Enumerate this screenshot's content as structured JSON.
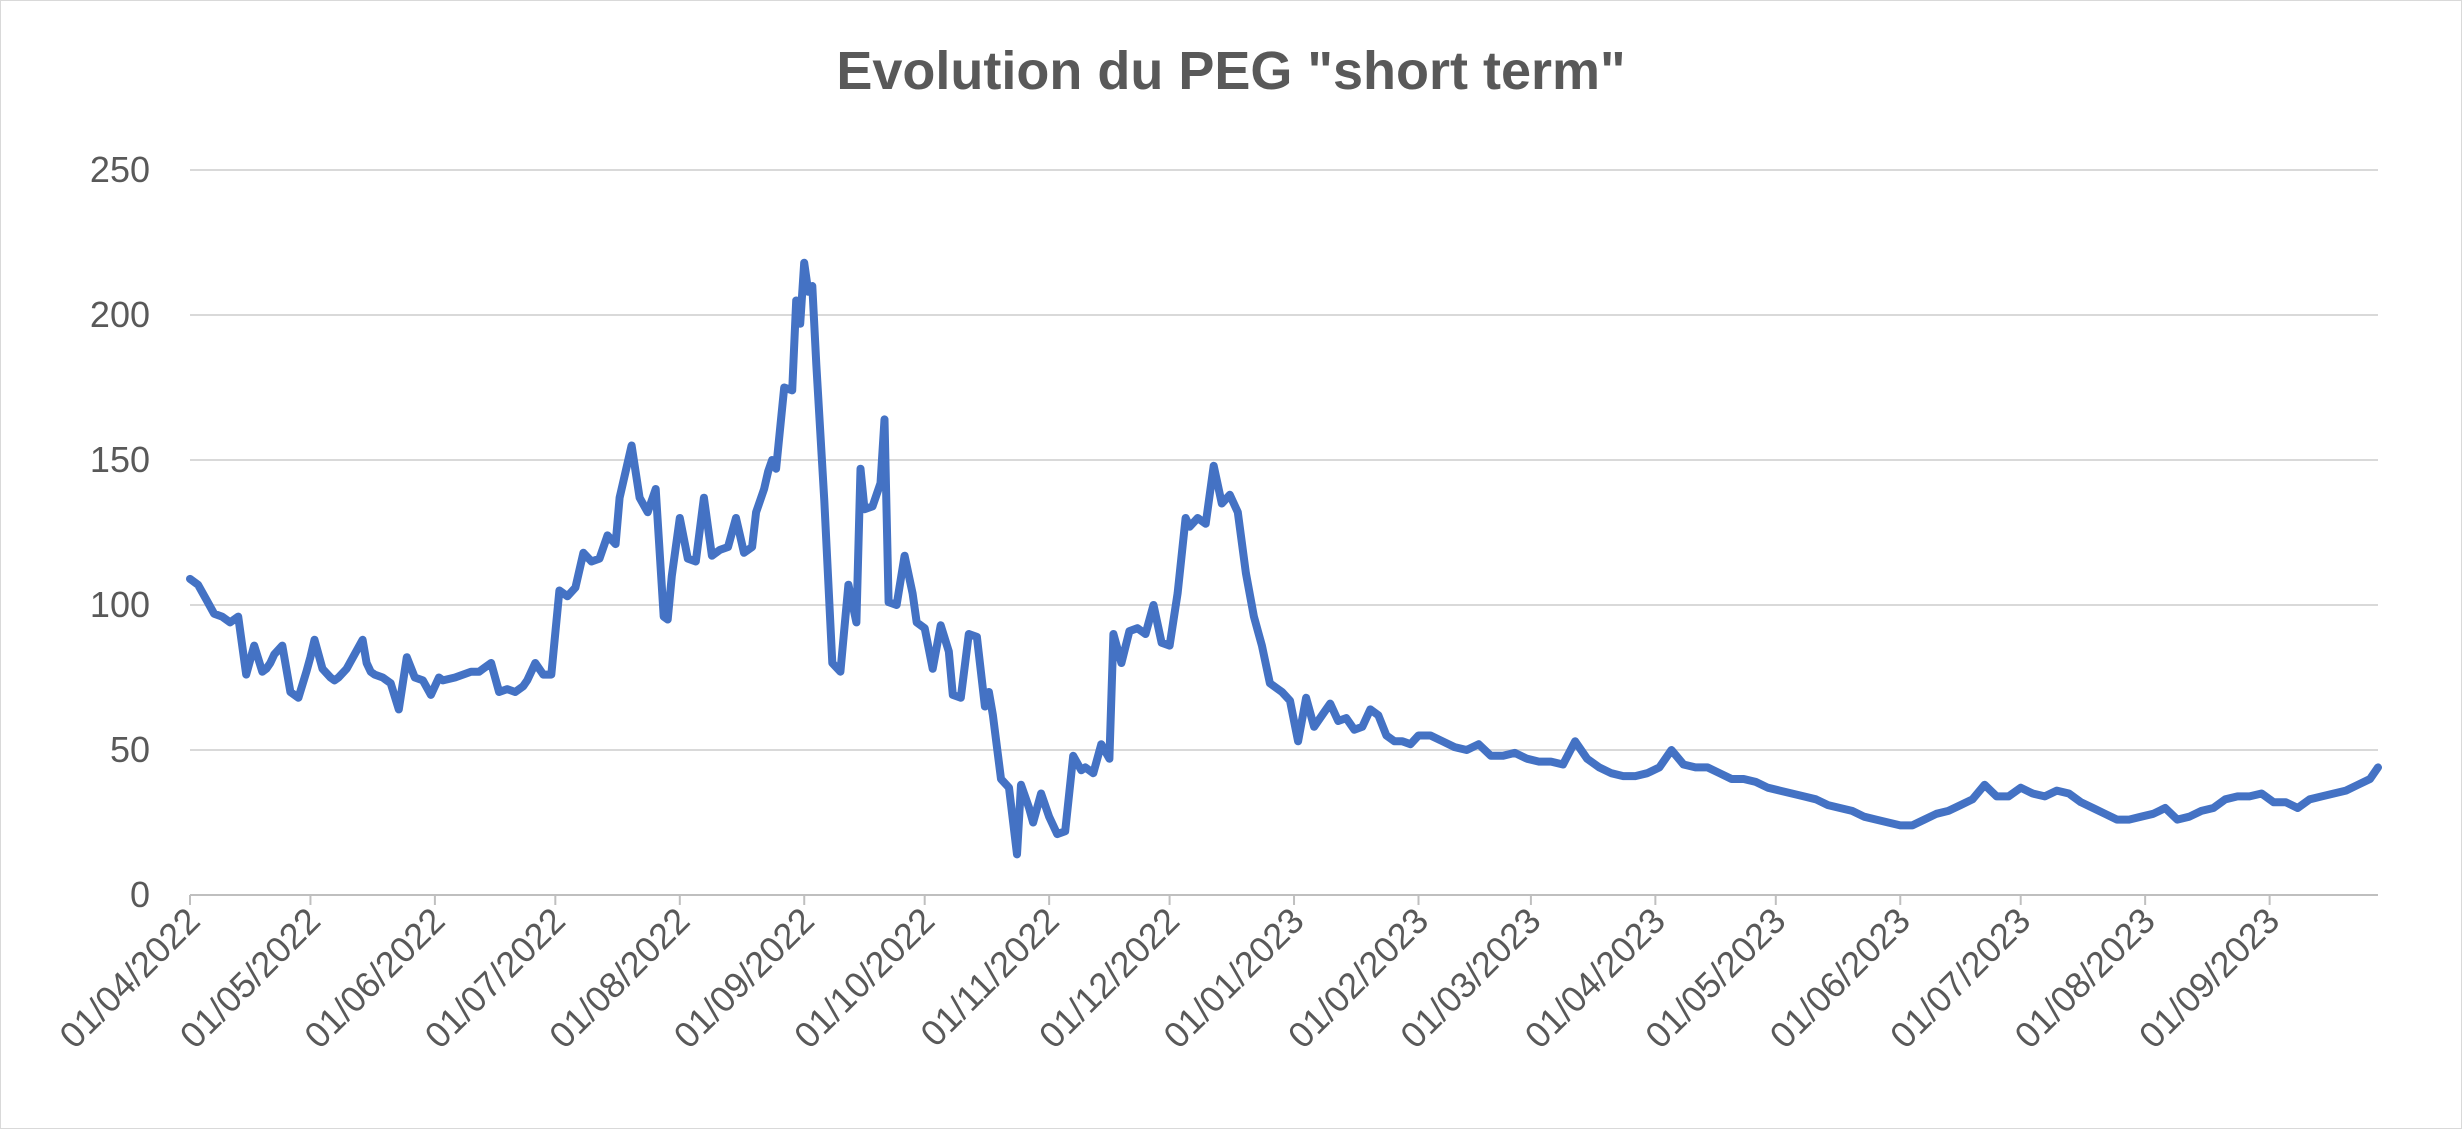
{
  "chart_data": {
    "type": "line",
    "title": "Evolution du PEG \"short term\"",
    "xlabel": "",
    "ylabel": "",
    "ylim": [
      0,
      250
    ],
    "yticks": [
      "0",
      "50",
      "100",
      "150",
      "200",
      "250"
    ],
    "xticks": [
      "01/04/2022",
      "01/05/2022",
      "01/06/2022",
      "01/07/2022",
      "01/08/2022",
      "01/09/2022",
      "01/10/2022",
      "01/11/2022",
      "01/12/2022",
      "01/01/2023",
      "01/02/2023",
      "01/03/2023",
      "01/04/2023",
      "01/05/2023",
      "01/06/2023",
      "01/07/2023",
      "01/08/2023",
      "01/09/2023"
    ],
    "xrange": [
      "2022-04-01",
      "2023-09-28"
    ],
    "grid": "horizontal",
    "legend": "none",
    "line_color": "#4472C4",
    "series": [
      {
        "x": [
          "2022-04-01",
          "2022-04-03",
          "2022-04-05",
          "2022-04-07",
          "2022-04-09",
          "2022-04-11",
          "2022-04-13",
          "2022-04-15",
          "2022-04-17",
          "2022-04-19",
          "2022-04-20",
          "2022-04-21",
          "2022-04-22",
          "2022-04-24",
          "2022-04-26",
          "2022-04-28",
          "2022-04-30",
          "2022-05-01",
          "2022-05-02",
          "2022-05-04",
          "2022-05-06",
          "2022-05-07",
          "2022-05-08",
          "2022-05-10",
          "2022-05-12",
          "2022-05-14",
          "2022-05-15",
          "2022-05-16",
          "2022-05-17",
          "2022-05-19",
          "2022-05-21",
          "2022-05-23",
          "2022-05-25",
          "2022-05-27",
          "2022-05-29",
          "2022-05-31",
          "2022-06-02",
          "2022-06-03",
          "2022-06-06",
          "2022-06-08",
          "2022-06-10",
          "2022-06-12",
          "2022-06-13",
          "2022-06-15",
          "2022-06-17",
          "2022-06-19",
          "2022-06-21",
          "2022-06-23",
          "2022-06-24",
          "2022-06-26",
          "2022-06-28",
          "2022-06-30",
          "2022-07-02",
          "2022-07-04",
          "2022-07-06",
          "2022-07-07",
          "2022-07-08",
          "2022-07-10",
          "2022-07-12",
          "2022-07-14",
          "2022-07-16",
          "2022-07-17",
          "2022-07-20",
          "2022-07-22",
          "2022-07-24",
          "2022-07-26",
          "2022-07-28",
          "2022-07-29",
          "2022-07-30",
          "2022-08-01",
          "2022-08-03",
          "2022-08-05",
          "2022-08-07",
          "2022-08-09",
          "2022-08-11",
          "2022-08-13",
          "2022-08-15",
          "2022-08-17",
          "2022-08-19",
          "2022-08-20",
          "2022-08-22",
          "2022-08-23",
          "2022-08-24",
          "2022-08-25",
          "2022-08-27",
          "2022-08-29",
          "2022-08-30",
          "2022-08-31",
          "2022-09-01",
          "2022-09-02",
          "2022-09-03",
          "2022-09-04",
          "2022-09-06",
          "2022-09-08",
          "2022-09-10",
          "2022-09-12",
          "2022-09-14",
          "2022-09-15",
          "2022-09-16",
          "2022-09-18",
          "2022-09-20",
          "2022-09-21",
          "2022-09-22",
          "2022-09-24",
          "2022-09-26",
          "2022-09-28",
          "2022-09-29",
          "2022-10-01",
          "2022-10-03",
          "2022-10-05",
          "2022-10-07",
          "2022-10-08",
          "2022-10-10",
          "2022-10-12",
          "2022-10-14",
          "2022-10-16",
          "2022-10-17",
          "2022-10-18",
          "2022-10-20",
          "2022-10-22",
          "2022-10-24",
          "2022-10-25",
          "2022-10-27",
          "2022-10-28",
          "2022-10-30",
          "2022-11-01",
          "2022-11-03",
          "2022-11-05",
          "2022-11-07",
          "2022-11-09",
          "2022-11-10",
          "2022-11-12",
          "2022-11-14",
          "2022-11-16",
          "2022-11-17",
          "2022-11-19",
          "2022-11-21",
          "2022-11-23",
          "2022-11-25",
          "2022-11-27",
          "2022-11-29",
          "2022-12-01",
          "2022-12-03",
          "2022-12-05",
          "2022-12-06",
          "2022-12-08",
          "2022-12-10",
          "2022-12-12",
          "2022-12-14",
          "2022-12-16",
          "2022-12-18",
          "2022-12-20",
          "2022-12-22",
          "2022-12-24",
          "2022-12-26",
          "2022-12-28",
          "2022-12-29",
          "2022-12-31",
          "2023-01-02",
          "2023-01-04",
          "2023-01-06",
          "2023-01-08",
          "2023-01-10",
          "2023-01-12",
          "2023-01-14",
          "2023-01-16",
          "2023-01-18",
          "2023-01-20",
          "2023-01-22",
          "2023-01-24",
          "2023-01-26",
          "2023-01-28",
          "2023-01-30",
          "2023-02-01",
          "2023-02-04",
          "2023-02-07",
          "2023-02-10",
          "2023-02-13",
          "2023-02-16",
          "2023-02-19",
          "2023-02-22",
          "2023-02-25",
          "2023-02-28",
          "2023-03-03",
          "2023-03-06",
          "2023-03-09",
          "2023-03-12",
          "2023-03-15",
          "2023-03-18",
          "2023-03-21",
          "2023-03-24",
          "2023-03-27",
          "2023-03-30",
          "2023-04-02",
          "2023-04-05",
          "2023-04-08",
          "2023-04-11",
          "2023-04-14",
          "2023-04-17",
          "2023-04-20",
          "2023-04-23",
          "2023-04-26",
          "2023-04-29",
          "2023-05-02",
          "2023-05-05",
          "2023-05-08",
          "2023-05-11",
          "2023-05-14",
          "2023-05-17",
          "2023-05-20",
          "2023-05-23",
          "2023-05-26",
          "2023-05-29",
          "2023-06-01",
          "2023-06-04",
          "2023-06-07",
          "2023-06-10",
          "2023-06-13",
          "2023-06-16",
          "2023-06-19",
          "2023-06-22",
          "2023-06-25",
          "2023-06-28",
          "2023-07-01",
          "2023-07-04",
          "2023-07-07",
          "2023-07-10",
          "2023-07-13",
          "2023-07-16",
          "2023-07-19",
          "2023-07-22",
          "2023-07-25",
          "2023-07-28",
          "2023-07-31",
          "2023-08-03",
          "2023-08-06",
          "2023-08-09",
          "2023-08-12",
          "2023-08-15",
          "2023-08-18",
          "2023-08-21",
          "2023-08-24",
          "2023-08-27",
          "2023-08-30",
          "2023-09-02",
          "2023-09-05",
          "2023-09-08",
          "2023-09-11",
          "2023-09-14",
          "2023-09-17",
          "2023-09-20",
          "2023-09-23",
          "2023-09-26",
          "2023-09-28"
        ],
        "values": [
          109,
          107,
          102,
          97,
          96,
          94,
          96,
          76,
          86,
          77,
          78,
          80,
          83,
          86,
          70,
          68,
          77,
          82,
          88,
          78,
          75,
          74,
          75,
          78,
          83,
          88,
          80,
          77,
          76,
          75,
          73,
          64,
          82,
          75,
          74,
          69,
          75,
          74,
          75,
          76,
          77,
          77,
          78,
          80,
          70,
          71,
          70,
          72,
          74,
          80,
          76,
          76,
          105,
          103,
          106,
          112,
          118,
          115,
          116,
          124,
          121,
          137,
          155,
          137,
          132,
          140,
          96,
          95,
          110,
          130,
          116,
          115,
          137,
          117,
          119,
          120,
          130,
          118,
          120,
          132,
          140,
          146,
          150,
          147,
          175,
          174,
          205,
          197,
          218,
          208,
          210,
          183,
          136,
          80,
          77,
          107,
          94,
          147,
          133,
          134,
          142,
          164,
          101,
          100,
          117,
          104,
          94,
          92,
          78,
          93,
          84,
          69,
          68,
          90,
          89,
          65,
          70,
          62,
          40,
          37,
          14,
          38,
          30,
          25,
          35,
          27,
          21,
          22,
          48,
          43,
          44,
          42,
          52,
          47,
          90,
          80,
          91,
          92,
          90,
          100,
          87,
          86,
          104,
          130,
          127,
          130,
          128,
          148,
          135,
          138,
          132,
          111,
          96,
          86,
          73,
          71,
          70,
          67,
          53,
          68,
          58,
          62,
          66,
          60,
          61,
          57,
          58,
          64,
          62,
          55,
          53,
          53,
          52,
          55,
          55,
          53,
          51,
          50,
          52,
          48,
          48,
          49,
          47,
          46,
          46,
          45,
          53,
          47,
          44,
          42,
          41,
          41,
          42,
          44,
          50,
          45,
          44,
          44,
          42,
          40,
          40,
          39,
          37,
          36,
          35,
          34,
          33,
          31,
          30,
          29,
          27,
          26,
          25,
          24,
          24,
          26,
          28,
          29,
          31,
          33,
          38,
          34,
          34,
          37,
          35,
          34,
          36,
          35,
          32,
          30,
          28,
          26,
          26,
          27,
          28,
          30,
          26,
          27,
          29,
          30,
          33,
          34,
          34,
          35,
          32,
          32,
          30,
          33,
          34,
          35,
          36,
          38,
          40,
          44
        ]
      }
    ]
  }
}
